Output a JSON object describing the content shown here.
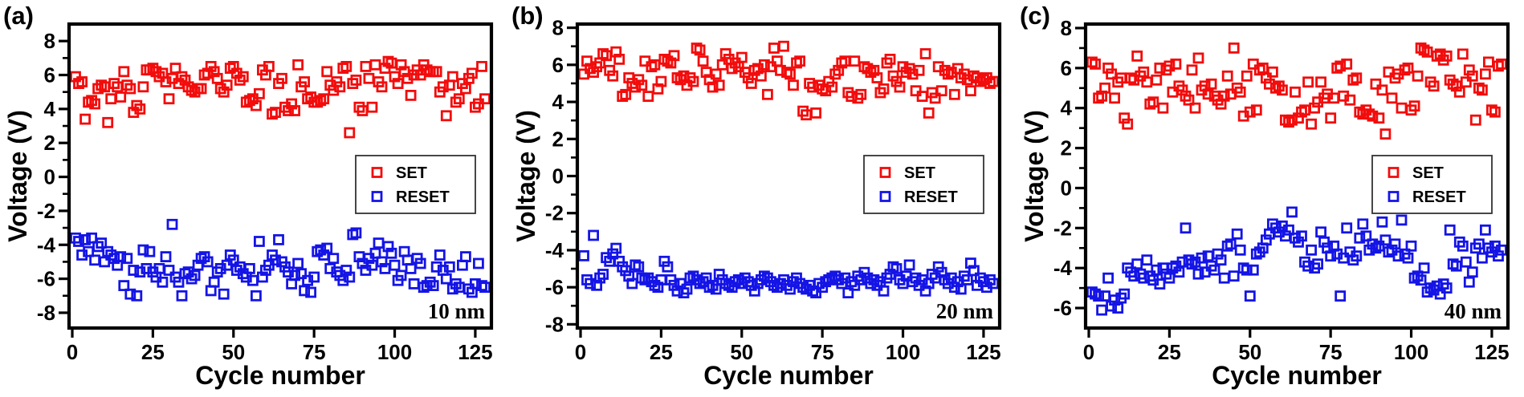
{
  "figure": {
    "description": "Endurance cycling SET/RESET switching voltage distributions for three device thicknesses",
    "colors": {
      "set": "#f20c0c",
      "reset": "#1414e6",
      "axis": "#000000",
      "background": "#ffffff"
    }
  },
  "chart_data": [
    {
      "type": "scatter",
      "panel_label": "(a)",
      "annotation": "10 nm",
      "xlabel": "Cycle number",
      "ylabel": "Voltage (V)",
      "xlim": [
        -1,
        130
      ],
      "ylim": [
        -8.9,
        9.0
      ],
      "xticks": [
        0,
        25,
        50,
        75,
        100,
        125
      ],
      "yticks": [
        -8,
        -6,
        -4,
        -2,
        0,
        2,
        4,
        6,
        8
      ],
      "yticks_minor": [
        -7,
        -5,
        -3,
        -1,
        1,
        3,
        5,
        7
      ],
      "grid": false,
      "legend_position": "center-right",
      "legend": [
        "SET",
        "RESET"
      ],
      "series": [
        {
          "name": "SET",
          "color": "#f20c0c",
          "x_start": 1,
          "x_step": 1,
          "y": [
            5.9,
            5.5,
            5.6,
            3.4,
            4.4,
            4.5,
            4.3,
            5.2,
            5.4,
            5.3,
            3.2,
            4.6,
            5.5,
            5.3,
            4.7,
            6.2,
            5.4,
            5.2,
            3.8,
            4.2,
            4.0,
            5.3,
            6.3,
            6.3,
            6.4,
            6.2,
            5.9,
            6.1,
            5.6,
            4.6,
            5.8,
            6.4,
            5.5,
            5.9,
            5.7,
            5.3,
            5.1,
            5.0,
            5.2,
            5.2,
            6.0,
            6.1,
            6.5,
            6.2,
            5.8,
            5.2,
            5.0,
            5.4,
            6.4,
            6.5,
            6.1,
            5.7,
            5.9,
            4.4,
            4.5,
            4.6,
            4.2,
            4.9,
            6.3,
            6.0,
            6.5,
            3.7,
            3.8,
            5.5,
            5.8,
            4.1,
            3.9,
            4.3,
            3.9,
            6.6,
            5.3,
            5.6,
            4.6,
            4.7,
            4.4,
            4.4,
            4.5,
            4.6,
            6.2,
            5.4,
            5.1,
            5.6,
            5.3,
            6.4,
            6.5,
            2.6,
            5.5,
            5.7,
            4.1,
            3.9,
            6.5,
            5.8,
            4.1,
            6.6,
            5.6,
            5.3,
            6.4,
            6.8,
            6.7,
            5.9,
            5.5,
            6.6,
            6.2,
            5.8,
            4.8,
            6.0,
            6.3,
            6.0,
            6.6,
            6.3,
            6.2,
            6.2,
            6.2,
            5.0,
            5.3,
            3.6,
            5.4,
            5.9,
            4.4,
            4.6,
            5.5,
            5.2,
            5.8,
            6.1,
            4.1,
            4.3,
            6.5,
            4.6
          ]
        },
        {
          "name": "RESET",
          "color": "#1414e6",
          "x_start": 1,
          "x_step": 1,
          "y": [
            -3.6,
            -3.8,
            -4.6,
            -3.7,
            -4.4,
            -3.6,
            -4.9,
            -4.1,
            -3.9,
            -5.0,
            -4.4,
            -4.6,
            -4.8,
            -5.2,
            -4.7,
            -6.4,
            -4.8,
            -6.9,
            -5.5,
            -7.0,
            -5.6,
            -4.3,
            -5.4,
            -4.4,
            -5.6,
            -5.9,
            -5.4,
            -6.2,
            -4.7,
            -5.5,
            -2.8,
            -5.9,
            -6.2,
            -7.0,
            -5.7,
            -5.6,
            -6.0,
            -5.8,
            -5.2,
            -4.8,
            -4.7,
            -5.0,
            -6.7,
            -6.2,
            -5.6,
            -5.4,
            -6.9,
            -5.2,
            -4.6,
            -4.9,
            -5.5,
            -5.3,
            -5.7,
            -5.9,
            -5.4,
            -6.1,
            -7.0,
            -3.8,
            -5.9,
            -5.5,
            -5.2,
            -4.6,
            -4.9,
            -3.7,
            -5.0,
            -5.3,
            -5.6,
            -6.3,
            -5.8,
            -5.1,
            -5.7,
            -6.7,
            -6.1,
            -6.8,
            -5.9,
            -4.4,
            -4.3,
            -4.6,
            -4.2,
            -5.4,
            -4.8,
            -5.6,
            -5.8,
            -6.1,
            -5.5,
            -5.9,
            -3.4,
            -3.3,
            -4.7,
            -5.1,
            -5.5,
            -4.8,
            -5.2,
            -4.5,
            -3.9,
            -5.0,
            -5.4,
            -4.1,
            -4.5,
            -5.2,
            -6.1,
            -5.8,
            -4.4,
            -4.9,
            -5.4,
            -6.3,
            -4.8,
            -5.1,
            -6.5,
            -6.4,
            -6.2,
            -6.4,
            -5.3,
            -4.6,
            -5.5,
            -6.0,
            -5.3,
            -6.6,
            -6.3,
            -6.5,
            -5.2,
            -4.7,
            -6.6,
            -6.8,
            -6.3,
            -5.1,
            -6.4,
            -6.5
          ]
        }
      ]
    },
    {
      "type": "scatter",
      "panel_label": "(b)",
      "annotation": "20 nm",
      "xlabel": "Cycle number",
      "ylabel": "Voltage (V)",
      "xlim": [
        -1,
        130
      ],
      "ylim": [
        -8.2,
        8.2
      ],
      "xticks": [
        0,
        25,
        50,
        75,
        100,
        125
      ],
      "yticks": [
        -8,
        -6,
        -4,
        -2,
        0,
        2,
        4,
        6,
        8
      ],
      "yticks_minor": [
        -7,
        -5,
        -3,
        -1,
        1,
        3,
        5,
        7
      ],
      "grid": false,
      "legend_position": "center-right",
      "legend": [
        "SET",
        "RESET"
      ],
      "series": [
        {
          "name": "SET",
          "color": "#f20c0c",
          "x_start": 1,
          "x_step": 1,
          "y": [
            5.5,
            6.2,
            5.8,
            5.6,
            5.9,
            6.1,
            6.6,
            6.5,
            5.7,
            5.4,
            6.7,
            6.3,
            4.3,
            4.4,
            5.3,
            5.0,
            4.8,
            5.2,
            4.9,
            6.2,
            4.3,
            5.9,
            6.0,
            4.7,
            5.1,
            6.3,
            6.2,
            6.1,
            6.5,
            5.3,
            5.2,
            5.4,
            4.9,
            5.3,
            5.1,
            6.9,
            6.8,
            6.2,
            5.6,
            5.2,
            4.8,
            5.5,
            4.9,
            6.0,
            6.6,
            6.3,
            5.8,
            6.1,
            5.9,
            6.4,
            5.6,
            5.3,
            5.0,
            5.7,
            5.8,
            5.4,
            6.0,
            4.4,
            5.9,
            6.9,
            6.2,
            5.7,
            7.0,
            5.6,
            5.5,
            4.9,
            6.1,
            6.2,
            3.5,
            3.3,
            5.0,
            4.8,
            3.4,
            4.9,
            4.7,
            4.6,
            5.1,
            4.8,
            5.5,
            5.7,
            6.1,
            6.2,
            4.5,
            4.3,
            6.2,
            4.2,
            4.4,
            5.9,
            5.8,
            5.6,
            5.7,
            5.3,
            4.5,
            4.7,
            6.1,
            6.3,
            5.4,
            5.1,
            4.8,
            5.9,
            5.6,
            5.8,
            5.5,
            4.6,
            5.7,
            4.3,
            6.6,
            3.4,
            4.5,
            4.2,
            5.9,
            4.6,
            5.7,
            5.5,
            5.6,
            4.4,
            5.8,
            5.3,
            5.5,
            5.2,
            4.6,
            5.4,
            5.3,
            5.1,
            5.2,
            5.3,
            5.0,
            5.1
          ]
        },
        {
          "name": "RESET",
          "color": "#1414e6",
          "x_start": 1,
          "x_step": 1,
          "y": [
            -4.3,
            -5.6,
            -5.8,
            -3.2,
            -5.9,
            -5.5,
            -5.3,
            -4.4,
            -4.6,
            -4.2,
            -3.9,
            -4.6,
            -4.9,
            -5.1,
            -5.4,
            -5.8,
            -4.8,
            -4.9,
            -5.5,
            -5.6,
            -5.5,
            -5.7,
            -5.9,
            -6.0,
            -5.6,
            -4.6,
            -4.9,
            -5.6,
            -5.9,
            -6.2,
            -5.8,
            -6.3,
            -6.1,
            -5.5,
            -5.4,
            -5.6,
            -5.8,
            -5.7,
            -5.5,
            -6.0,
            -5.9,
            -6.1,
            -5.3,
            -5.6,
            -5.8,
            -5.9,
            -6.0,
            -5.7,
            -5.6,
            -5.8,
            -5.5,
            -5.7,
            -5.9,
            -6.2,
            -5.8,
            -5.6,
            -5.4,
            -5.5,
            -5.7,
            -5.9,
            -6.0,
            -5.8,
            -5.6,
            -5.9,
            -6.1,
            -5.7,
            -5.5,
            -5.8,
            -6.0,
            -6.1,
            -5.9,
            -6.2,
            -6.3,
            -5.8,
            -6.0,
            -5.7,
            -5.6,
            -5.5,
            -5.4,
            -5.6,
            -5.8,
            -5.5,
            -6.3,
            -5.7,
            -5.9,
            -5.4,
            -5.6,
            -5.2,
            -5.5,
            -5.8,
            -5.6,
            -5.9,
            -5.7,
            -6.2,
            -5.5,
            -5.3,
            -4.9,
            -5.0,
            -5.6,
            -5.8,
            -5.4,
            -4.8,
            -5.7,
            -5.5,
            -5.9,
            -5.6,
            -6.2,
            -5.8,
            -5.3,
            -5.5,
            -4.9,
            -5.2,
            -5.6,
            -5.8,
            -5.5,
            -6.0,
            -5.7,
            -6.1,
            -5.4,
            -5.6,
            -4.7,
            -5.1,
            -5.9,
            -5.5,
            -5.7,
            -6.0,
            -5.6,
            -5.8
          ]
        }
      ]
    },
    {
      "type": "scatter",
      "panel_label": "(c)",
      "annotation": "40 nm",
      "xlabel": "Cycle number",
      "ylabel": "Voltage (V)",
      "xlim": [
        -1,
        130
      ],
      "ylim": [
        -7.0,
        8.2
      ],
      "xticks": [
        0,
        25,
        50,
        75,
        100,
        125
      ],
      "yticks": [
        -6,
        -4,
        -2,
        0,
        2,
        4,
        6,
        8
      ],
      "yticks_minor": [
        -5,
        -3,
        -1,
        1,
        3,
        5,
        7
      ],
      "grid": false,
      "legend_position": "center-right",
      "legend": [
        "SET",
        "RESET"
      ],
      "series": [
        {
          "name": "SET",
          "color": "#f20c0c",
          "x_start": 1,
          "x_step": 1,
          "y": [
            6.3,
            6.2,
            4.5,
            4.6,
            5.0,
            6.0,
            5.7,
            4.5,
            5.3,
            5.5,
            3.5,
            3.2,
            5.5,
            5.4,
            6.6,
            5.6,
            5.8,
            5.3,
            4.2,
            4.3,
            5.4,
            6.0,
            4.0,
            5.9,
            6.1,
            4.8,
            6.2,
            5.1,
            4.9,
            4.6,
            4.4,
            5.9,
            4.0,
            6.5,
            4.9,
            5.1,
            4.7,
            5.2,
            4.6,
            4.4,
            4.2,
            4.6,
            5.6,
            4.7,
            7.0,
            5.0,
            4.8,
            3.6,
            5.6,
            3.8,
            6.2,
            3.9,
            5.9,
            6.0,
            5.5,
            5.2,
            5.8,
            5.0,
            5.1,
            4.9,
            3.4,
            3.3,
            3.4,
            4.8,
            3.5,
            3.8,
            3.9,
            5.3,
            3.2,
            4.0,
            4.3,
            5.3,
            4.5,
            4.7,
            3.5,
            4.5,
            6.0,
            6.1,
            4.6,
            6.2,
            4.4,
            5.4,
            5.5,
            3.8,
            3.7,
            3.9,
            3.7,
            3.6,
            5.2,
            3.5,
            4.9,
            2.7,
            5.8,
            4.5,
            5.5,
            5.7,
            4.0,
            5.9,
            6.0,
            3.9,
            4.1,
            5.6,
            7.0,
            6.9,
            6.8,
            5.3,
            5.1,
            6.6,
            6.7,
            6.4,
            6.6,
            5.4,
            5.2,
            5.1,
            4.8,
            6.7,
            5.3,
            5.9,
            5.6,
            3.4,
            5.0,
            4.9,
            5.7,
            6.3,
            3.9,
            3.8,
            6.1,
            6.2
          ]
        },
        {
          "name": "RESET",
          "color": "#1414e6",
          "x_start": 1,
          "x_step": 1,
          "y": [
            -5.2,
            -5.3,
            -5.4,
            -6.1,
            -5.4,
            -4.5,
            -5.9,
            -5.6,
            -6.0,
            -5.5,
            -5.3,
            -4.0,
            -4.2,
            -4.4,
            -3.8,
            -4.3,
            -4.5,
            -3.6,
            -4.4,
            -4.6,
            -4.1,
            -4.8,
            -4.0,
            -4.3,
            -4.5,
            -4.0,
            -3.9,
            -4.2,
            -3.7,
            -2.0,
            -3.6,
            -3.8,
            -3.7,
            -4.3,
            -3.5,
            -4.2,
            -3.4,
            -3.9,
            -4.1,
            -3.3,
            -3.6,
            -4.5,
            -2.9,
            -2.8,
            -4.4,
            -2.3,
            -3.1,
            -4.0,
            -4.1,
            -5.4,
            -4.1,
            -3.3,
            -3.2,
            -3.0,
            -2.6,
            -2.3,
            -1.8,
            -2.0,
            -2.2,
            -1.9,
            -2.4,
            -2.1,
            -1.2,
            -2.5,
            -2.7,
            -2.4,
            -3.7,
            -3.9,
            -3.1,
            -4.0,
            -3.8,
            -2.2,
            -2.7,
            -3.0,
            -3.4,
            -2.9,
            -3.3,
            -5.4,
            -3.5,
            -2.0,
            -3.2,
            -3.6,
            -3.4,
            -2.5,
            -1.8,
            -2.4,
            -3.1,
            -2.8,
            -3.0,
            -2.9,
            -1.7,
            -2.6,
            -3.2,
            -3.1,
            -2.8,
            -3.4,
            -1.6,
            -3.3,
            -3.5,
            -2.9,
            -4.5,
            -4.4,
            -4.6,
            -4.0,
            -5.2,
            -5.0,
            -5.1,
            -4.9,
            -5.3,
            -4.8,
            -5.0,
            -2.1,
            -3.8,
            -3.9,
            -2.7,
            -2.9,
            -3.7,
            -4.7,
            -4.2,
            -3.0,
            -2.8,
            -3.5,
            -2.1,
            -3.0,
            -3.2,
            -2.9,
            -3.4,
            -3.1
          ]
        }
      ]
    }
  ]
}
